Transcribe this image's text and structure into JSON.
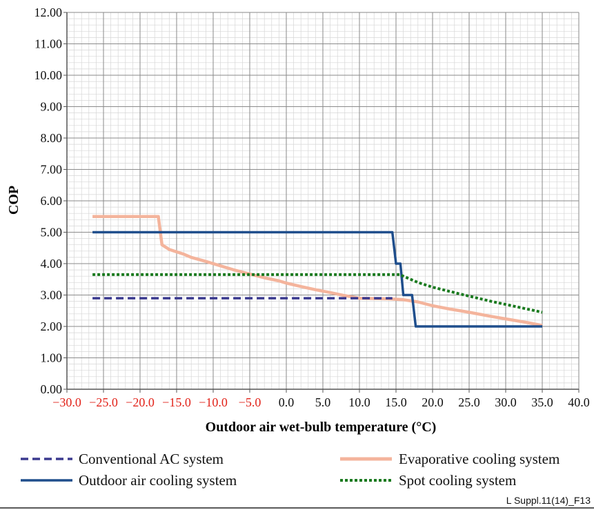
{
  "chart_data": {
    "type": "line",
    "xlabel": "Outdoor air wet-bulb temperature (°C)",
    "ylabel": "COP",
    "xlim": [
      -30,
      40
    ],
    "ylim": [
      0,
      12
    ],
    "x_ticks": [
      {
        "value": -30,
        "label": "−30.0",
        "color": "#e2231a"
      },
      {
        "value": -25,
        "label": "−25.0",
        "color": "#e2231a"
      },
      {
        "value": -20,
        "label": "−20.0",
        "color": "#e2231a"
      },
      {
        "value": -15,
        "label": "−15.0",
        "color": "#e2231a"
      },
      {
        "value": -10,
        "label": "−10.0",
        "color": "#e2231a"
      },
      {
        "value": -5,
        "label": "−5.0",
        "color": "#e2231a"
      },
      {
        "value": 0,
        "label": "0.0",
        "color": "#111111"
      },
      {
        "value": 5,
        "label": "5.0",
        "color": "#111111"
      },
      {
        "value": 10,
        "label": "10.0",
        "color": "#111111"
      },
      {
        "value": 15,
        "label": "15.0",
        "color": "#111111"
      },
      {
        "value": 20,
        "label": "20.0",
        "color": "#111111"
      },
      {
        "value": 25,
        "label": "25.0",
        "color": "#111111"
      },
      {
        "value": 30,
        "label": "30.0",
        "color": "#111111"
      },
      {
        "value": 35,
        "label": "35.0",
        "color": "#111111"
      },
      {
        "value": 40,
        "label": "40.0",
        "color": "#111111"
      }
    ],
    "y_ticks": [
      "0.00",
      "1.00",
      "2.00",
      "3.00",
      "4.00",
      "5.00",
      "6.00",
      "7.00",
      "8.00",
      "9.00",
      "10.00",
      "11.00",
      "12.00"
    ],
    "grid": true,
    "legend_position": "bottom",
    "series": [
      {
        "name": "Evaporative cooling system",
        "color": "#f4b49c",
        "style": "solid",
        "points": [
          [
            -26.5,
            5.5
          ],
          [
            -17.5,
            5.5
          ],
          [
            -17,
            4.6
          ],
          [
            -16,
            4.45
          ],
          [
            -14,
            4.3
          ],
          [
            -13,
            4.2
          ],
          [
            -11,
            4.07
          ],
          [
            -9,
            3.93
          ],
          [
            -7,
            3.79
          ],
          [
            -5,
            3.67
          ],
          [
            -3,
            3.55
          ],
          [
            -1,
            3.45
          ],
          [
            0,
            3.38
          ],
          [
            2,
            3.27
          ],
          [
            4,
            3.17
          ],
          [
            6,
            3.08
          ],
          [
            8,
            2.98
          ],
          [
            10,
            2.9
          ],
          [
            14,
            2.88
          ],
          [
            16,
            2.85
          ],
          [
            18,
            2.78
          ],
          [
            20,
            2.66
          ],
          [
            22,
            2.57
          ],
          [
            25,
            2.45
          ],
          [
            28,
            2.32
          ],
          [
            31,
            2.2
          ],
          [
            33,
            2.12
          ],
          [
            35,
            2.03
          ]
        ]
      },
      {
        "name": "Outdoor air cooling system",
        "color": "#1f4e8c",
        "style": "solid",
        "points": [
          [
            -26.5,
            5
          ],
          [
            14.5,
            5
          ],
          [
            15,
            4
          ],
          [
            15.6,
            4
          ],
          [
            16,
            3
          ],
          [
            17.2,
            3
          ],
          [
            17.7,
            2
          ],
          [
            35,
            2
          ]
        ]
      },
      {
        "name": "Spot cooling system",
        "color": "#1a7a1f",
        "style": "dotted",
        "points": [
          [
            -26.5,
            3.65
          ],
          [
            15.5,
            3.65
          ],
          [
            18,
            3.4
          ],
          [
            20,
            3.25
          ],
          [
            24,
            3.02
          ],
          [
            28,
            2.8
          ],
          [
            31,
            2.65
          ],
          [
            35,
            2.45
          ]
        ]
      },
      {
        "name": "Conventional AC system",
        "color": "#3b3a8f",
        "style": "dashed",
        "points": [
          [
            -26.5,
            2.9
          ],
          [
            14.5,
            2.9
          ]
        ]
      }
    ]
  },
  "legend": {
    "conventional": "Conventional AC system",
    "evaporative": "Evaporative cooling system",
    "outdoor_air": "Outdoor air cooling system",
    "spot": "Spot cooling system"
  },
  "figure_ref": "L Suppl.11(14)_F13"
}
